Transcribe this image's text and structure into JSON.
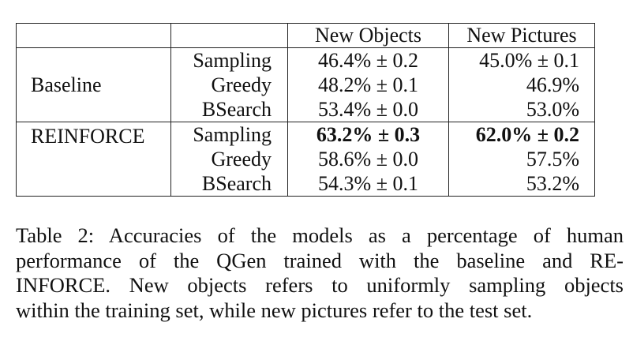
{
  "table": {
    "header": {
      "col_objects": "New Objects",
      "col_pictures": "New Pictures"
    },
    "groups": [
      {
        "name": "Baseline",
        "rows": [
          {
            "decoder": "Sampling",
            "new_objects": "46.4% ± 0.2",
            "new_pictures": "45.0% ± 0.1"
          },
          {
            "decoder": "Greedy",
            "new_objects": "48.2% ± 0.1",
            "new_pictures": "46.9%"
          },
          {
            "decoder": "BSearch",
            "new_objects": "53.4% ± 0.0",
            "new_pictures": "53.0%"
          }
        ]
      },
      {
        "name": "REINFORCE",
        "rows": [
          {
            "decoder": "Sampling",
            "new_objects": "63.2% ± 0.3",
            "new_pictures": "62.0% ± 0.2"
          },
          {
            "decoder": "Greedy",
            "new_objects": "58.6% ± 0.0",
            "new_pictures": "57.5%"
          },
          {
            "decoder": "BSearch",
            "new_objects": "54.3% ± 0.1",
            "new_pictures": "53.2%"
          }
        ]
      }
    ]
  },
  "caption": {
    "line1": "Table 2: Accuracies of the models as a percentage of human",
    "line2": "performance of the QGen trained with the baseline and RE-",
    "line3": "INFORCE. New objects refers to uniformly sampling objects",
    "line4": "within the training set, while new pictures refer to the test set."
  }
}
